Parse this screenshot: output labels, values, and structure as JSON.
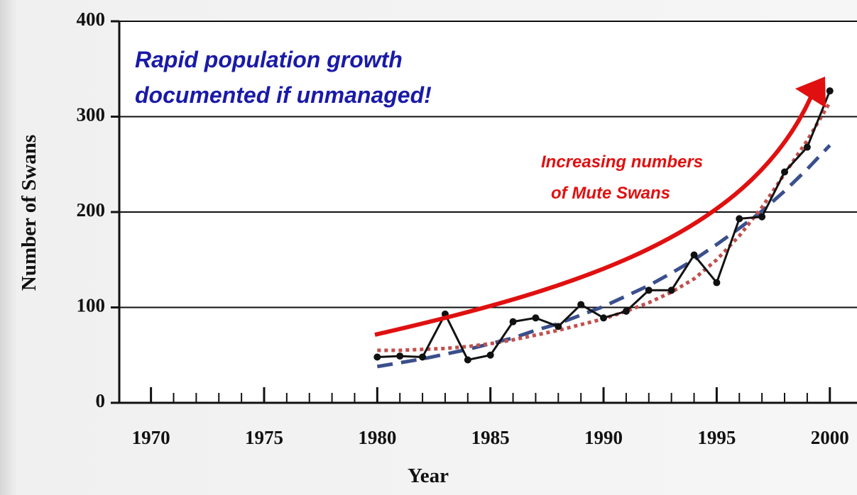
{
  "chart_data": {
    "type": "line",
    "x_label": "Year",
    "y_label": "Number of Swans",
    "annotations": [
      {
        "lines": [
          "Rapid population growth",
          "documented if unmanaged!"
        ],
        "color": "#1a1aa8"
      },
      {
        "lines": [
          "Increasing numbers",
          "of Mute Swans"
        ],
        "color": "#e01010"
      }
    ],
    "x": [
      1980,
      1981,
      1982,
      1983,
      1984,
      1985,
      1986,
      1987,
      1988,
      1989,
      1990,
      1991,
      1992,
      1993,
      1994,
      1995,
      1996,
      1997,
      1998,
      1999,
      2000
    ],
    "series": [
      {
        "color": "#3a4f8c",
        "dash": "dashed",
        "markers": false,
        "values": [
          38,
          42,
          46,
          51,
          56,
          62,
          68,
          76,
          83,
          92,
          101,
          112,
          123,
          136,
          150,
          166,
          183,
          201,
          222,
          245,
          270
        ]
      },
      {
        "color": "#c0504d",
        "dash": "dotted",
        "markers": false,
        "values": [
          55,
          55,
          56,
          57,
          59,
          62,
          66,
          71,
          76,
          82,
          88,
          96,
          105,
          116,
          130,
          150,
          175,
          205,
          240,
          275,
          315
        ]
      },
      {
        "color": "#111111",
        "dash": "solid",
        "markers": true,
        "values": [
          48,
          49,
          48,
          93,
          45,
          50,
          85,
          89,
          80,
          103,
          89,
          96,
          118,
          118,
          155,
          126,
          193,
          195,
          242,
          268,
          327
        ]
      }
    ],
    "xlim": [
      1968.6,
      2001.2
    ],
    "ylim": [
      0,
      400
    ],
    "xticks": [
      1970,
      1975,
      1980,
      1985,
      1990,
      1995,
      2000
    ],
    "yticks": [
      0,
      100,
      200,
      300,
      400
    ],
    "grid": true
  }
}
